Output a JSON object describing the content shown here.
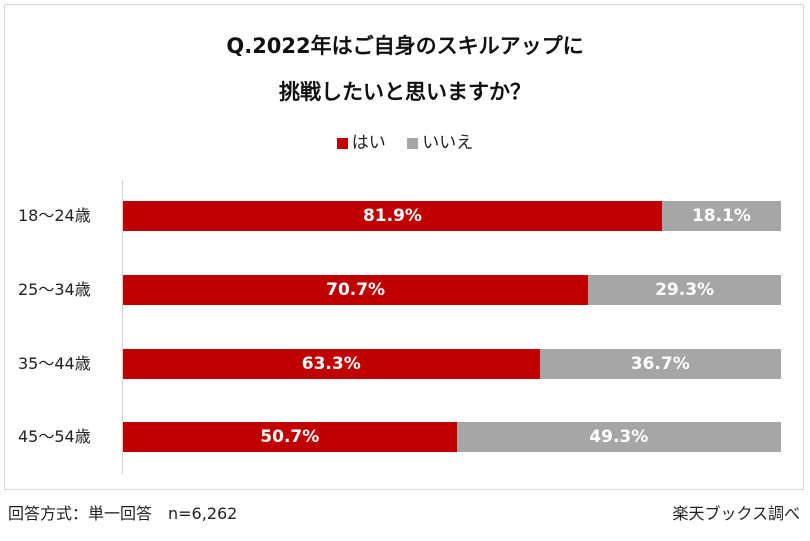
{
  "chart_data": {
    "type": "bar",
    "orientation": "horizontal",
    "stacked": true,
    "title_line1": "Q.2022年はご自身のスキルアップに",
    "title_line2": "挑戦したいと思いますか？",
    "categories": [
      "18〜24歳",
      "25〜34歳",
      "35〜44歳",
      "45〜54歳"
    ],
    "series": [
      {
        "name": "はい",
        "color": "#c00000",
        "values": [
          81.9,
          70.7,
          63.3,
          50.7
        ],
        "labels": [
          "81.9%",
          "70.7%",
          "63.3%",
          "50.7%"
        ]
      },
      {
        "name": "いいえ",
        "color": "#a6a6a6",
        "values": [
          18.1,
          29.3,
          36.7,
          49.3
        ],
        "labels": [
          "18.1%",
          "29.3%",
          "36.7%",
          "49.3%"
        ]
      }
    ],
    "xlim": [
      0,
      100
    ],
    "legend_position": "top-center"
  },
  "footer": {
    "method": "回答方式：単一回答　n=6,262",
    "source": "楽天ブックス調べ"
  }
}
